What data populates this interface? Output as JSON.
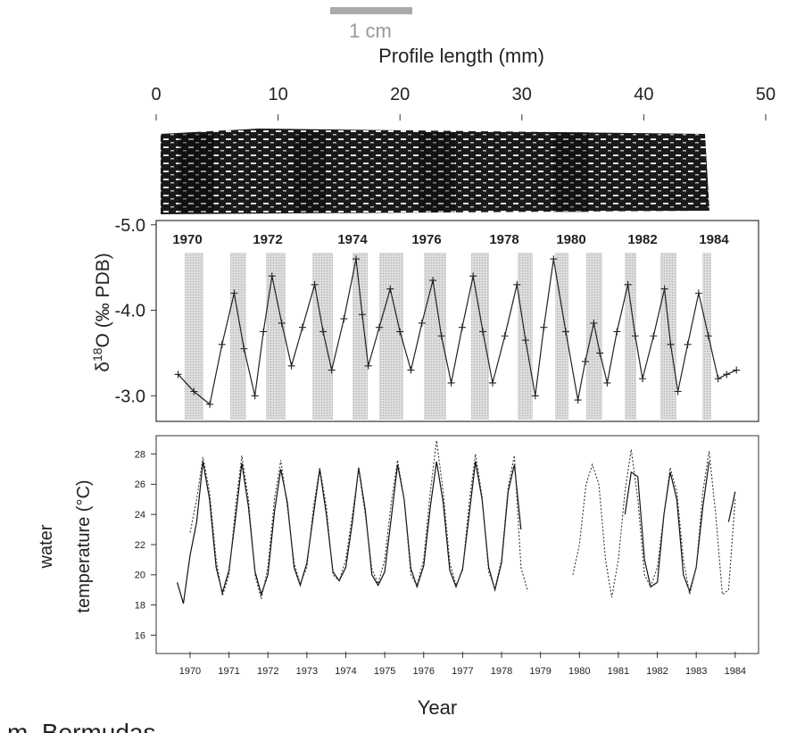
{
  "chart_data": [
    {
      "type": "line",
      "scale_bar_label": "1 cm",
      "xlabel": "Profile length (mm)",
      "xlim": [
        0,
        50
      ],
      "xticks": [
        0,
        10,
        20,
        30,
        40,
        50
      ],
      "ylabel_parts": [
        "δ",
        "18",
        "O  (‰ PDB)"
      ],
      "ylim": [
        -2.7,
        -5.05
      ],
      "yticks": [
        {
          "value": -5,
          "label": "-5.0"
        },
        {
          "value": -4,
          "label": "-4.0"
        },
        {
          "value": -3,
          "label": "-3.0"
        }
      ],
      "annotations": [
        "1970",
        "1972",
        "1974",
        "1976",
        "1978",
        "1980",
        "1982",
        "1984"
      ],
      "color": "#222",
      "markers": "+",
      "x": [
        1.8,
        3.1,
        4.4,
        5.4,
        6.4,
        7.2,
        8.1,
        8.8,
        9.5,
        10.3,
        11.1,
        12.0,
        13.0,
        13.7,
        14.4,
        15.4,
        16.4,
        16.9,
        17.4,
        18.3,
        19.2,
        20.0,
        20.9,
        21.8,
        22.7,
        23.4,
        24.2,
        25.1,
        26.0,
        26.8,
        27.6,
        28.6,
        29.6,
        30.3,
        31.1,
        31.8,
        32.6,
        33.6,
        34.6,
        35.2,
        35.9,
        36.4,
        37.0,
        37.8,
        38.7,
        39.3,
        39.9,
        40.8,
        41.7,
        42.2,
        42.8,
        43.6,
        44.5,
        45.3,
        46.1,
        46.8,
        47.6
      ],
      "values": [
        -3.25,
        -3.05,
        -2.9,
        -3.6,
        -4.2,
        -3.55,
        -3.0,
        -3.75,
        -4.4,
        -3.85,
        -3.35,
        -3.8,
        -4.3,
        -3.75,
        -3.3,
        -3.9,
        -4.6,
        -3.95,
        -3.35,
        -3.8,
        -4.25,
        -3.75,
        -3.3,
        -3.85,
        -4.35,
        -3.7,
        -3.15,
        -3.8,
        -4.4,
        -3.75,
        -3.15,
        -3.7,
        -4.3,
        -3.65,
        -3.0,
        -3.8,
        -4.6,
        -3.75,
        -2.95,
        -3.4,
        -3.85,
        -3.5,
        -3.15,
        -3.75,
        -4.3,
        -3.7,
        -3.2,
        -3.7,
        -4.25,
        -3.6,
        -3.05,
        -3.6,
        -4.2,
        -3.7,
        -3.2,
        -3.25,
        -3.3
      ]
    },
    {
      "type": "line",
      "xlabel": "Year",
      "ylabel": [
        "water",
        "temperature (°C)"
      ],
      "xlim": [
        1969.63,
        1985.1
      ],
      "xticks": [
        {
          "value": 1970.5,
          "label": "1970"
        },
        {
          "value": 1971.5,
          "label": "1971"
        },
        {
          "value": 1972.5,
          "label": "1972"
        },
        {
          "value": 1973.5,
          "label": "1973"
        },
        {
          "value": 1974.5,
          "label": "1974"
        },
        {
          "value": 1975.5,
          "label": "1975"
        },
        {
          "value": 1976.5,
          "label": "1976"
        },
        {
          "value": 1977.5,
          "label": "1977"
        },
        {
          "value": 1978.5,
          "label": "1978"
        },
        {
          "value": 1979.5,
          "label": "1979"
        },
        {
          "value": 1980.5,
          "label": "1980"
        },
        {
          "value": 1981.5,
          "label": "1981"
        },
        {
          "value": 1982.5,
          "label": "1982"
        },
        {
          "value": 1983.5,
          "label": "1983"
        },
        {
          "value": 1984.5,
          "label": "1984"
        }
      ],
      "ylim": [
        14.9,
        29.1
      ],
      "yticks": [
        16,
        18,
        20,
        22,
        24,
        26,
        28
      ],
      "x": [
        1970,
        1970.17,
        1970.33,
        1970.5,
        1970.67,
        1970.83,
        1971,
        1971.17,
        1971.33,
        1971.5,
        1971.67,
        1971.83,
        1972,
        1972.17,
        1972.33,
        1972.5,
        1972.67,
        1972.83,
        1973,
        1973.17,
        1973.33,
        1973.5,
        1973.67,
        1973.83,
        1974,
        1974.17,
        1974.33,
        1974.5,
        1974.67,
        1974.83,
        1975,
        1975.17,
        1975.33,
        1975.5,
        1975.67,
        1975.83,
        1976,
        1976.17,
        1976.33,
        1976.5,
        1976.67,
        1976.83,
        1977,
        1977.17,
        1977.33,
        1977.5,
        1977.67,
        1977.83,
        1978,
        1978.17,
        1978.33,
        1978.5,
        1978.67,
        1978.83,
        1979,
        1979.17,
        1979.33,
        1979.5,
        1979.67,
        1979.83,
        1980,
        1980.17,
        1980.33,
        1980.5,
        1980.67,
        1980.83,
        1981,
        1981.17,
        1981.33,
        1981.5,
        1981.67,
        1981.83,
        1982,
        1982.17,
        1982.33,
        1982.5,
        1982.67,
        1982.83,
        1983,
        1983.17,
        1983.33,
        1983.5,
        1983.67,
        1983.83,
        1984,
        1984.17,
        1984.33,
        1984.5
      ],
      "series": [
        {
          "color": "#111",
          "style": "solid",
          "values": [
            null,
            19.5,
            18.1,
            21.3,
            23.5,
            27.5,
            25.0,
            20.5,
            18.8,
            20.3,
            23.8,
            27.4,
            24.5,
            20.2,
            18.7,
            20.0,
            24.2,
            27.0,
            24.8,
            20.5,
            19.3,
            20.8,
            24.0,
            27.0,
            24.0,
            20.2,
            19.6,
            20.5,
            23.5,
            27.1,
            24.3,
            20.0,
            19.3,
            20.2,
            23.8,
            27.3,
            25.0,
            20.4,
            19.2,
            20.6,
            24.5,
            27.5,
            24.8,
            20.3,
            19.2,
            20.4,
            24.0,
            27.5,
            25.0,
            20.5,
            19.0,
            20.8,
            25.5,
            27.3,
            23.0,
            null,
            null,
            null,
            null,
            null,
            null,
            null,
            null,
            null,
            null,
            null,
            null,
            null,
            null,
            null,
            24.0,
            26.8,
            26.5,
            21.0,
            19.2,
            19.5,
            24.0,
            26.8,
            25.0,
            20.0,
            18.9,
            20.5,
            24.5,
            27.5,
            null,
            null,
            23.5,
            25.5
          ]
        },
        {
          "color": "#333",
          "style": "dotted",
          "values": [
            null,
            null,
            null,
            22.8,
            25.0,
            27.8,
            25.5,
            21.0,
            18.6,
            20.0,
            24.5,
            27.9,
            25.0,
            20.0,
            18.4,
            20.5,
            25.0,
            27.6,
            24.5,
            20.8,
            19.4,
            20.5,
            24.5,
            27.1,
            24.5,
            20.0,
            19.6,
            21.0,
            24.0,
            27.0,
            24.0,
            20.4,
            19.4,
            21.0,
            24.8,
            27.6,
            25.0,
            20.0,
            19.3,
            21.0,
            25.5,
            28.9,
            25.5,
            20.8,
            19.3,
            20.3,
            24.8,
            28.0,
            25.2,
            20.2,
            19.1,
            21.0,
            25.8,
            27.9,
            20.5,
            18.9,
            null,
            null,
            null,
            null,
            null,
            null,
            20.0,
            22.0,
            26.0,
            27.3,
            26.0,
            21.0,
            18.5,
            21.0,
            25.5,
            28.3,
            25.0,
            20.0,
            19.2,
            20.5,
            24.0,
            27.1,
            25.5,
            21.0,
            18.7,
            20.5,
            25.5,
            28.2,
            24.0,
            18.7,
            19.0,
            25.0
          ]
        }
      ]
    },
    {
      "type": "text",
      "caption": "m, Bermudas"
    }
  ]
}
